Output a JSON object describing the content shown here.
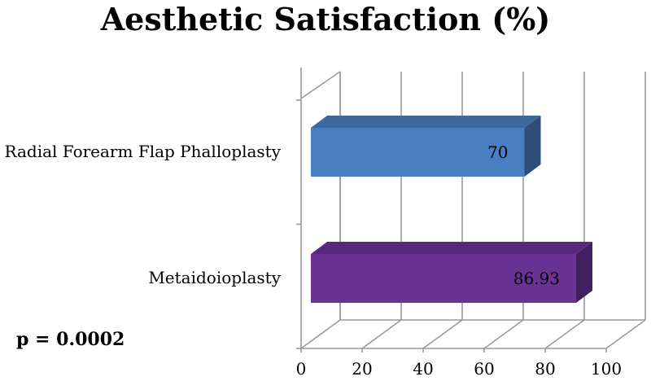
{
  "chart_data": {
    "type": "bar",
    "orientation": "horizontal",
    "style": "3d",
    "title": "Aesthetic Satisfaction (%)",
    "categories": [
      "Radial Forearm Flap Phalloplasty",
      "Metaidoioplasty"
    ],
    "values": [
      70,
      86.93
    ],
    "value_labels": [
      "70",
      "86.93"
    ],
    "colors": [
      "#4a7ec2",
      "#6b3296"
    ],
    "xlim": [
      0,
      100
    ],
    "xticks": [
      0,
      20,
      40,
      60,
      80,
      100
    ],
    "grid": true,
    "xlabel": "",
    "ylabel": ""
  },
  "annotation": {
    "text": "p = 0.0002"
  }
}
